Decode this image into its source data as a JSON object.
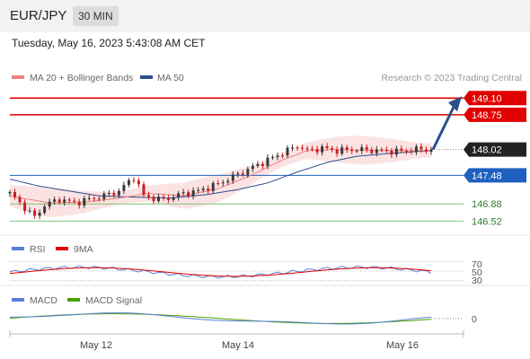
{
  "header": {
    "pair": "EUR/JPY",
    "timeframe": "30 MIN"
  },
  "timestamp": "Tuesday, May 16, 2023 5:43:08 AM CET",
  "legend": {
    "ma20": {
      "label": "MA 20 + Bollinger Bands",
      "color": "#f08080"
    },
    "ma50": {
      "label": "MA 50",
      "color": "#2c4f8c"
    },
    "credit": "Research © 2023 Trading Central"
  },
  "rsi_legend": {
    "rsi": {
      "label": "RSI",
      "color": "#5b7fd6"
    },
    "ma": {
      "label": "9MA",
      "color": "#e00000"
    }
  },
  "macd_legend": {
    "macd": {
      "label": "MACD",
      "color": "#5b7fd6"
    },
    "signal": {
      "label": "MACD Signal",
      "color": "#4aa000"
    }
  },
  "chart_data": {
    "type": "candlestick",
    "x_tick_labels": [
      "May 12",
      "May 14",
      "May 16"
    ],
    "price_range": [
      146.3,
      149.35
    ],
    "levels": [
      {
        "label": "149.10",
        "value": 149.1,
        "style": "resistance",
        "color": "#e00000"
      },
      {
        "label": "148.75",
        "value": 148.75,
        "style": "resistance",
        "color": "#e00000"
      },
      {
        "label": "148.02",
        "value": 148.02,
        "style": "last",
        "color": "#222222"
      },
      {
        "label": "147.48",
        "value": 147.48,
        "style": "pivot",
        "color": "#1f5fbf"
      },
      {
        "label": "146.88",
        "value": 146.88,
        "style": "support",
        "color": "#2e8b2e"
      },
      {
        "label": "146.52",
        "value": 146.52,
        "style": "support",
        "color": "#2e8b2e"
      }
    ],
    "price_path": [
      [
        0,
        147.1
      ],
      [
        3,
        146.8
      ],
      [
        5,
        146.6
      ],
      [
        7,
        146.85
      ],
      [
        10,
        146.98
      ],
      [
        13,
        146.9
      ],
      [
        16,
        146.98
      ],
      [
        20,
        147.08
      ],
      [
        22,
        147.15
      ],
      [
        25,
        147.45
      ],
      [
        27,
        147.05
      ],
      [
        30,
        146.98
      ],
      [
        32,
        147.0
      ],
      [
        35,
        147.1
      ],
      [
        38,
        147.15
      ],
      [
        42,
        147.3
      ],
      [
        45,
        147.45
      ],
      [
        48,
        147.6
      ],
      [
        50,
        147.7
      ],
      [
        53,
        147.85
      ],
      [
        56,
        148.0
      ],
      [
        58,
        148.1
      ],
      [
        60,
        148.0
      ],
      [
        63,
        148.05
      ],
      [
        66,
        148.0
      ],
      [
        70,
        148.02
      ],
      [
        74,
        148.0
      ],
      [
        78,
        147.98
      ],
      [
        82,
        148.02
      ],
      [
        85,
        148.02
      ]
    ],
    "ma20_path": [
      [
        0,
        147.05
      ],
      [
        8,
        146.9
      ],
      [
        15,
        146.92
      ],
      [
        22,
        147.0
      ],
      [
        28,
        147.1
      ],
      [
        35,
        147.05
      ],
      [
        42,
        147.2
      ],
      [
        48,
        147.45
      ],
      [
        55,
        147.8
      ],
      [
        60,
        148.0
      ],
      [
        66,
        148.02
      ],
      [
        75,
        148.0
      ],
      [
        85,
        148.0
      ]
    ],
    "ma50_path": [
      [
        0,
        147.4
      ],
      [
        6,
        147.25
      ],
      [
        12,
        147.15
      ],
      [
        18,
        147.05
      ],
      [
        26,
        147.02
      ],
      [
        32,
        147.0
      ],
      [
        40,
        147.08
      ],
      [
        46,
        147.18
      ],
      [
        52,
        147.32
      ],
      [
        58,
        147.55
      ],
      [
        64,
        147.75
      ],
      [
        70,
        147.88
      ],
      [
        78,
        147.95
      ],
      [
        85,
        148.0
      ]
    ],
    "bb_half_width": 0.22,
    "rsi": {
      "ticks": [
        "70",
        "50",
        "30"
      ],
      "range": [
        20,
        80
      ]
    },
    "macd": {
      "ticks": [
        "0"
      ]
    },
    "projection": {
      "from": 148.02,
      "to": 149.1
    }
  }
}
